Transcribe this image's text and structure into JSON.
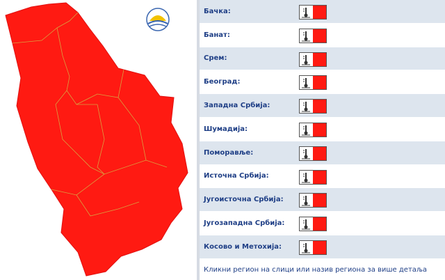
{
  "regions": [
    "Бачка:",
    "Банат:",
    "Срем:",
    "Београд:",
    "Западна Србија:",
    "Шумадија:",
    "Поморавље:",
    "Источна Србија:",
    "Југоисточна Србија:",
    "Југозападна Србија:",
    "Косово и Метохија:"
  ],
  "footer": "Кликни регион на слици или назив региона за више детаља"
}
